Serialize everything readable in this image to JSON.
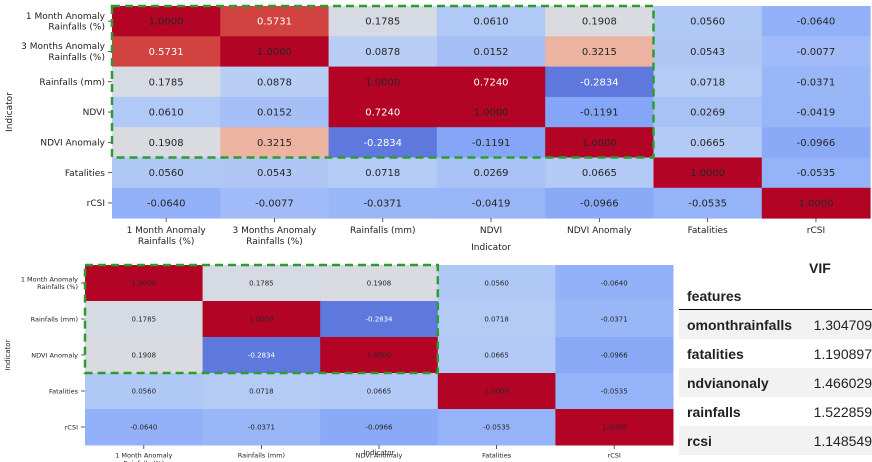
{
  "chart_data": [
    {
      "type": "heatmap",
      "xlabel": "Indicator",
      "ylabel": "Indicator",
      "x_tick_labels": [
        [
          "1 Month Anomaly",
          "Rainfalls (%)"
        ],
        [
          "3 Months Anomaly",
          "Rainfalls (%)"
        ],
        [
          "Rainfalls (mm)"
        ],
        [
          "NDVI"
        ],
        [
          "NDVI Anomaly"
        ],
        [
          "Fatalities"
        ],
        [
          "rCSI"
        ]
      ],
      "y_tick_labels": [
        [
          "1 Month Anomaly",
          "Rainfalls (%)"
        ],
        [
          "3 Months Anomaly",
          "Rainfalls (%)"
        ],
        [
          "Rainfalls (mm)"
        ],
        [
          "NDVI"
        ],
        [
          "NDVI Anomaly"
        ],
        [
          "Fatalities"
        ],
        [
          "rCSI"
        ]
      ],
      "cell_labels": [
        [
          "1.0000",
          "0.5731",
          "0.1785",
          "0.0610",
          "0.1908",
          "0.0560",
          "-0.0640"
        ],
        [
          "0.5731",
          "1.0000",
          "0.0878",
          "0.0152",
          "0.3215",
          "0.0543",
          "-0.0077"
        ],
        [
          "0.1785",
          "0.0878",
          "1.0000",
          "0.7240",
          "-0.2834",
          "0.0718",
          "-0.0371"
        ],
        [
          "0.0610",
          "0.0152",
          "0.7240",
          "1.0000",
          "-0.1191",
          "0.0269",
          "-0.0419"
        ],
        [
          "0.1908",
          "0.3215",
          "-0.2834",
          "-0.1191",
          "1.0000",
          "0.0665",
          "-0.0966"
        ],
        [
          "0.0560",
          "0.0543",
          "0.0718",
          "0.0269",
          "0.0665",
          "1.0000",
          "-0.0535"
        ],
        [
          "-0.0640",
          "-0.0077",
          "-0.0371",
          "-0.0419",
          "-0.0966",
          "-0.0535",
          "1.0000"
        ]
      ],
      "values": [
        [
          1.0,
          0.5731,
          0.1785,
          0.061,
          0.1908,
          0.056,
          -0.064
        ],
        [
          0.5731,
          1.0,
          0.0878,
          0.0152,
          0.3215,
          0.0543,
          -0.0077
        ],
        [
          0.1785,
          0.0878,
          1.0,
          0.724,
          -0.2834,
          0.0718,
          -0.0371
        ],
        [
          0.061,
          0.0152,
          0.724,
          1.0,
          -0.1191,
          0.0269,
          -0.0419
        ],
        [
          0.1908,
          0.3215,
          -0.2834,
          -0.1191,
          1.0,
          0.0665,
          -0.0966
        ],
        [
          0.056,
          0.0543,
          0.0718,
          0.0269,
          0.0665,
          1.0,
          -0.0535
        ],
        [
          -0.064,
          -0.0077,
          -0.0371,
          -0.0419,
          -0.0966,
          -0.0535,
          1.0
        ]
      ],
      "colormap": "coolwarm",
      "highlight_block": "first 5 indicators",
      "highlight_color": "#2e9b2e"
    },
    {
      "type": "heatmap",
      "xlabel": "Indicator",
      "ylabel": "Indicator",
      "x_tick_labels": [
        [
          "1 Month Anomaly",
          "Rainfalls (%)"
        ],
        [
          "Rainfalls (mm)"
        ],
        [
          "NDVI Anomaly"
        ],
        [
          "Fatalities"
        ],
        [
          "rCSI"
        ]
      ],
      "y_tick_labels": [
        [
          "1 Month Anomaly",
          "Rainfalls (%)"
        ],
        [
          "Rainfalls (mm)"
        ],
        [
          "NDVI Anomaly"
        ],
        [
          "Fatalities"
        ],
        [
          "rCSI"
        ]
      ],
      "cell_labels": [
        [
          "1.0000",
          "0.1785",
          "0.1908",
          "0.0560",
          "-0.0640"
        ],
        [
          "0.1785",
          "1.0000",
          "-0.2834",
          "0.0718",
          "-0.0371"
        ],
        [
          "0.1908",
          "-0.2834",
          "1.0000",
          "0.0665",
          "-0.0966"
        ],
        [
          "0.0560",
          "0.0718",
          "0.0665",
          "1.0000",
          "-0.0535"
        ],
        [
          "-0.0640",
          "-0.0371",
          "-0.0966",
          "-0.0535",
          "1.0000"
        ]
      ],
      "values": [
        [
          1.0,
          0.1785,
          0.1908,
          0.056,
          -0.064
        ],
        [
          0.1785,
          1.0,
          -0.2834,
          0.0718,
          -0.0371
        ],
        [
          0.1908,
          -0.2834,
          1.0,
          0.0665,
          -0.0966
        ],
        [
          0.056,
          0.0718,
          0.0665,
          1.0,
          -0.0535
        ],
        [
          -0.064,
          -0.0371,
          -0.0966,
          -0.0535,
          1.0
        ]
      ],
      "colormap": "coolwarm",
      "highlight_block": "first 3 indicators",
      "highlight_color": "#2e9b2e"
    },
    {
      "type": "table",
      "columns": [
        "VIF"
      ],
      "index_name": "features",
      "rows": [
        {
          "feature": "omonthrainfalls",
          "vif": "1.304709"
        },
        {
          "feature": "fatalities",
          "vif": "1.190897"
        },
        {
          "feature": "ndvianonaly",
          "vif": "1.466029"
        },
        {
          "feature": "rainfalls",
          "vif": "1.522859"
        },
        {
          "feature": "rcsi",
          "vif": "1.148549"
        }
      ]
    }
  ]
}
